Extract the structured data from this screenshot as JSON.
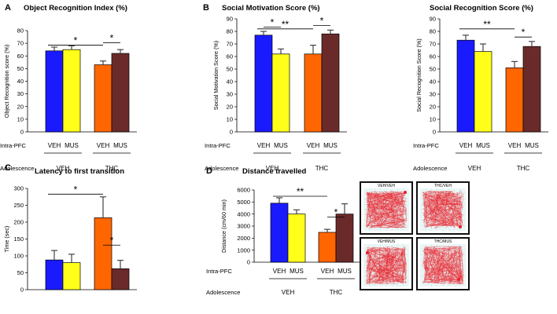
{
  "chart_data": [
    {
      "id": "A",
      "type": "bar",
      "panel_letter": "A",
      "title": "Object Recognition Index (%)",
      "ylabel": "Object Recognition score (%)",
      "ylim": [
        0,
        80
      ],
      "yticks": [
        0,
        10,
        20,
        30,
        40,
        50,
        60,
        70,
        80
      ],
      "categories": [
        "VEH/VEH",
        "VEH/MUS",
        "THC/VEH",
        "THC/MUS"
      ],
      "values": [
        64,
        65,
        53,
        62
      ],
      "errors": [
        3,
        3,
        3,
        3
      ],
      "bar_colors": [
        "#1a1aff",
        "#ffff1a",
        "#ff6600",
        "#6b2a2a"
      ],
      "intra_labels": [
        "VEH",
        "MUS",
        "VEH",
        "MUS"
      ],
      "group_labels": [
        "VEH",
        "THC"
      ],
      "significance": [
        {
          "from": 0,
          "to": 2,
          "label": "*"
        },
        {
          "from": 2,
          "to": 3,
          "label": "*"
        }
      ]
    },
    {
      "id": "B1",
      "type": "bar",
      "panel_letter": "B",
      "title": "Social Motivation Score (%)",
      "ylabel": "Social Motivation Score (%)",
      "ylim": [
        0,
        90
      ],
      "yticks": [
        0,
        10,
        20,
        30,
        40,
        50,
        60,
        70,
        80,
        90
      ],
      "categories": [
        "VEH/VEH",
        "VEH/MUS",
        "THC/VEH",
        "THC/MUS"
      ],
      "values": [
        77,
        62,
        62,
        78
      ],
      "errors": [
        3,
        4,
        7,
        3
      ],
      "bar_colors": [
        "#1a1aff",
        "#ffff1a",
        "#ff6600",
        "#6b2a2a"
      ],
      "intra_labels": [
        "VEH",
        "MUS",
        "VEH",
        "MUS"
      ],
      "group_labels": [
        "VEH",
        "THC"
      ],
      "significance": [
        {
          "from": 0,
          "to": 1,
          "label": "*"
        },
        {
          "from": 0,
          "to": 2,
          "label": "**"
        },
        {
          "from": 2,
          "to": 3,
          "label": "*"
        }
      ]
    },
    {
      "id": "B2",
      "type": "bar",
      "panel_letter": "",
      "title": "Social Recognition Score (%)",
      "ylabel": "Social Recognition Score (%)",
      "ylim": [
        0,
        90
      ],
      "yticks": [
        0,
        10,
        20,
        30,
        40,
        50,
        60,
        70,
        80,
        90
      ],
      "categories": [
        "VEH/VEH",
        "VEH/MUS",
        "THC/VEH",
        "THC/MUS"
      ],
      "values": [
        73,
        64,
        51,
        68
      ],
      "errors": [
        4,
        6,
        5,
        4
      ],
      "bar_colors": [
        "#1a1aff",
        "#ffff1a",
        "#ff6600",
        "#6b2a2a"
      ],
      "intra_labels": [
        "VEH",
        "MUS",
        "VEH",
        "MUS"
      ],
      "group_labels": [
        "VEH",
        "THC"
      ],
      "significance": [
        {
          "from": 0,
          "to": 2,
          "label": "**"
        },
        {
          "from": 2,
          "to": 3,
          "label": "*"
        }
      ]
    },
    {
      "id": "C",
      "type": "bar",
      "panel_letter": "C",
      "title": "Latency to first transition",
      "ylabel": "Time (sec)",
      "ylim": [
        0,
        300
      ],
      "yticks": [
        0,
        50,
        100,
        150,
        200,
        250,
        300
      ],
      "categories": [
        "VEH/VEH",
        "VEH/MUS",
        "THC/VEH",
        "THC/MUS"
      ],
      "values": [
        88,
        80,
        213,
        62
      ],
      "errors": [
        28,
        25,
        62,
        25
      ],
      "bar_colors": [
        "#1a1aff",
        "#ffff1a",
        "#ff6600",
        "#6b2a2a"
      ],
      "intra_labels": [
        "VEH",
        "MUS",
        "VEH",
        "MUS"
      ],
      "group_labels": [
        "VEH",
        "THC"
      ],
      "significance": [
        {
          "from": 0,
          "to": 2,
          "label": "*"
        },
        {
          "from": 2,
          "to": 3,
          "label": "*"
        }
      ]
    },
    {
      "id": "D",
      "type": "bar",
      "panel_letter": "D",
      "title": "Distance travelled",
      "ylabel": "Distance (cm/60 min)",
      "ylim": [
        0,
        6000
      ],
      "yticks": [
        0,
        1000,
        2000,
        3000,
        4000,
        5000,
        6000
      ],
      "categories": [
        "VEH/VEH",
        "VEH/MUS",
        "THC/VEH",
        "THC/MUS"
      ],
      "values": [
        4900,
        4000,
        2480,
        4000
      ],
      "errors": [
        450,
        350,
        250,
        850
      ],
      "bar_colors": [
        "#1a1aff",
        "#ffff1a",
        "#ff6600",
        "#6b2a2a"
      ],
      "intra_labels": [
        "VEH",
        "MUS",
        "VEH",
        "MUS"
      ],
      "group_labels": [
        "VEH",
        "THC"
      ],
      "significance": [
        {
          "from": 0,
          "to": 2,
          "label": "**"
        },
        {
          "from": 2,
          "to": 3,
          "label": "*"
        }
      ]
    }
  ],
  "row_labels": {
    "intra": "Intra-PFC",
    "adolescence": "Adolescence"
  },
  "track_titles": [
    "VEH/VEH",
    "THC/VEH",
    "VEH/MUS",
    "THC/MUS"
  ],
  "colors": {
    "track_line": "#e8202a",
    "track_bg": "#eaf6f6",
    "track_grid": "#bfe1e1",
    "frame": "#111111"
  }
}
